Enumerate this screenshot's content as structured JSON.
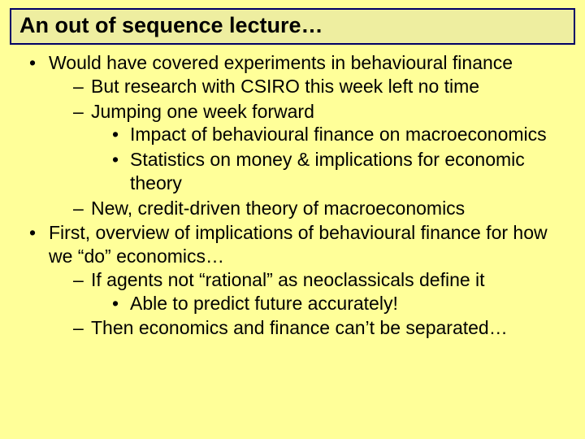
{
  "slide": {
    "background_color": "#ffff99",
    "title_box": {
      "text": "An out of sequence lecture…",
      "border_color": "#000066",
      "fill_color": "#eeeea0",
      "font_size_pt": 20,
      "font_weight": "bold"
    },
    "body_font_size_pt": 17,
    "text_color": "#000000",
    "font_family": "Comic Sans MS",
    "bullets": {
      "b0": "Would have covered experiments in behavioural finance",
      "b0_0": "But research with CSIRO this week left no time",
      "b0_1": "Jumping one week forward",
      "b0_1_0": "Impact of behavioural finance on macroeconomics",
      "b0_1_1": "Statistics on money & implications for economic theory",
      "b0_2": "New, credit-driven theory of macroeconomics",
      "b1": "First, overview of implications of behavioural finance for how we “do” economics…",
      "b1_0": "If agents not “rational” as neoclassicals define it",
      "b1_0_0": "Able to predict future accurately!",
      "b1_1": "Then economics and finance can’t be separated…"
    }
  }
}
